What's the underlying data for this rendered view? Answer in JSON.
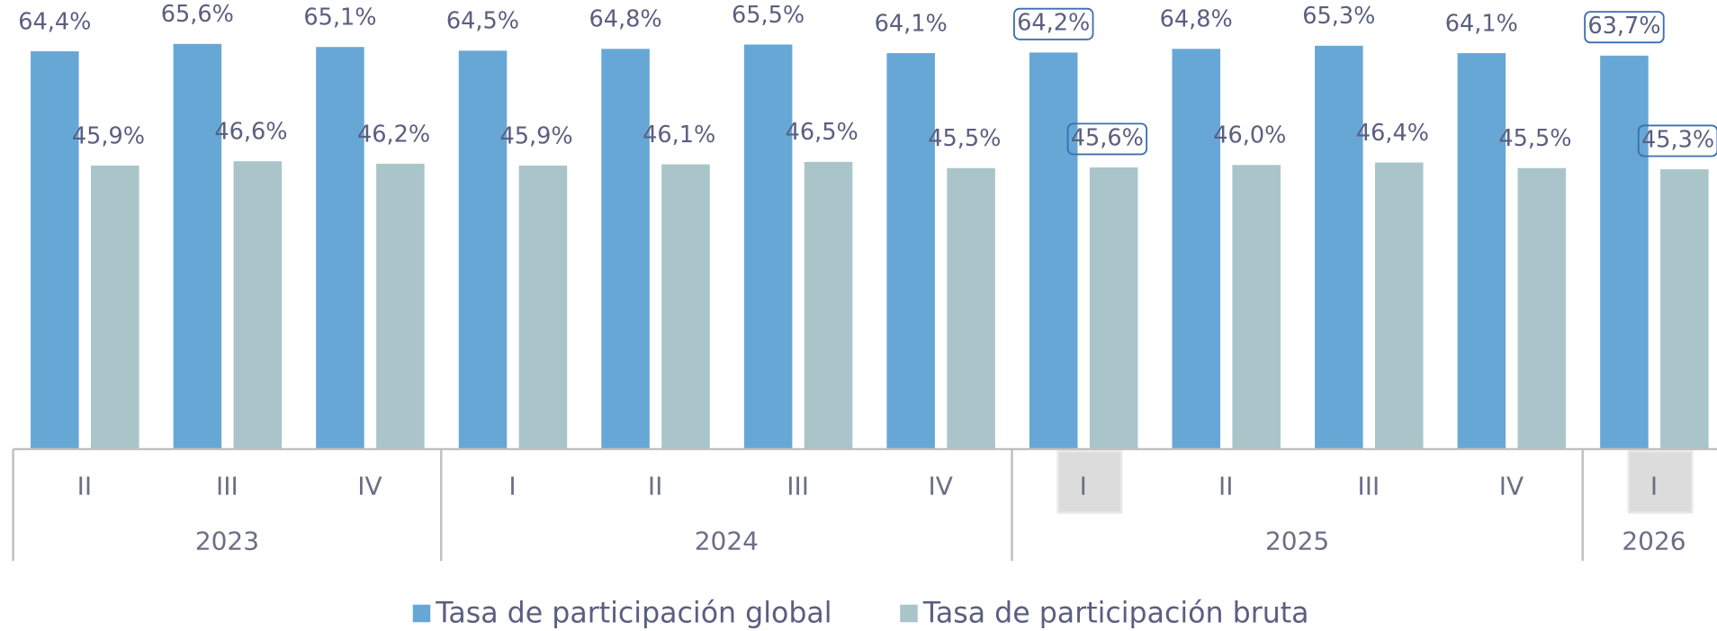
{
  "chart_data": {
    "type": "bar",
    "categories": [
      "II",
      "III",
      "IV",
      "I",
      "II",
      "III",
      "IV",
      "I",
      "II",
      "III",
      "IV",
      "I"
    ],
    "year_groups": [
      {
        "label": "2023",
        "size": 3
      },
      {
        "label": "2024",
        "size": 4
      },
      {
        "label": "2025",
        "size": 4
      },
      {
        "label": "2026",
        "size": 1
      }
    ],
    "series": [
      {
        "name": "Tasa de participación global",
        "color": "#67a7d6",
        "values": [
          64.4,
          65.6,
          65.1,
          64.5,
          64.8,
          65.5,
          64.1,
          64.2,
          64.8,
          65.3,
          64.1,
          63.7
        ],
        "value_labels": [
          "64,4%",
          "65,6%",
          "65,1%",
          "64,5%",
          "64,8%",
          "65,5%",
          "64,1%",
          "64,2%",
          "64,8%",
          "65,3%",
          "64,1%",
          "63,7%"
        ]
      },
      {
        "name": "Tasa de participación bruta",
        "color": "#a9c5c9",
        "values": [
          45.9,
          46.6,
          46.2,
          45.9,
          46.1,
          46.5,
          45.5,
          45.6,
          46.0,
          46.4,
          45.5,
          45.3
        ],
        "value_labels": [
          "45,9%",
          "46,6%",
          "46,2%",
          "45,9%",
          "46,1%",
          "46,5%",
          "45,5%",
          "45,6%",
          "46,0%",
          "46,4%",
          "45,5%",
          "45,3%"
        ]
      }
    ],
    "ylim": [
      0,
      72.7
    ],
    "highlight": [
      7,
      11
    ],
    "legend": "bottom"
  }
}
